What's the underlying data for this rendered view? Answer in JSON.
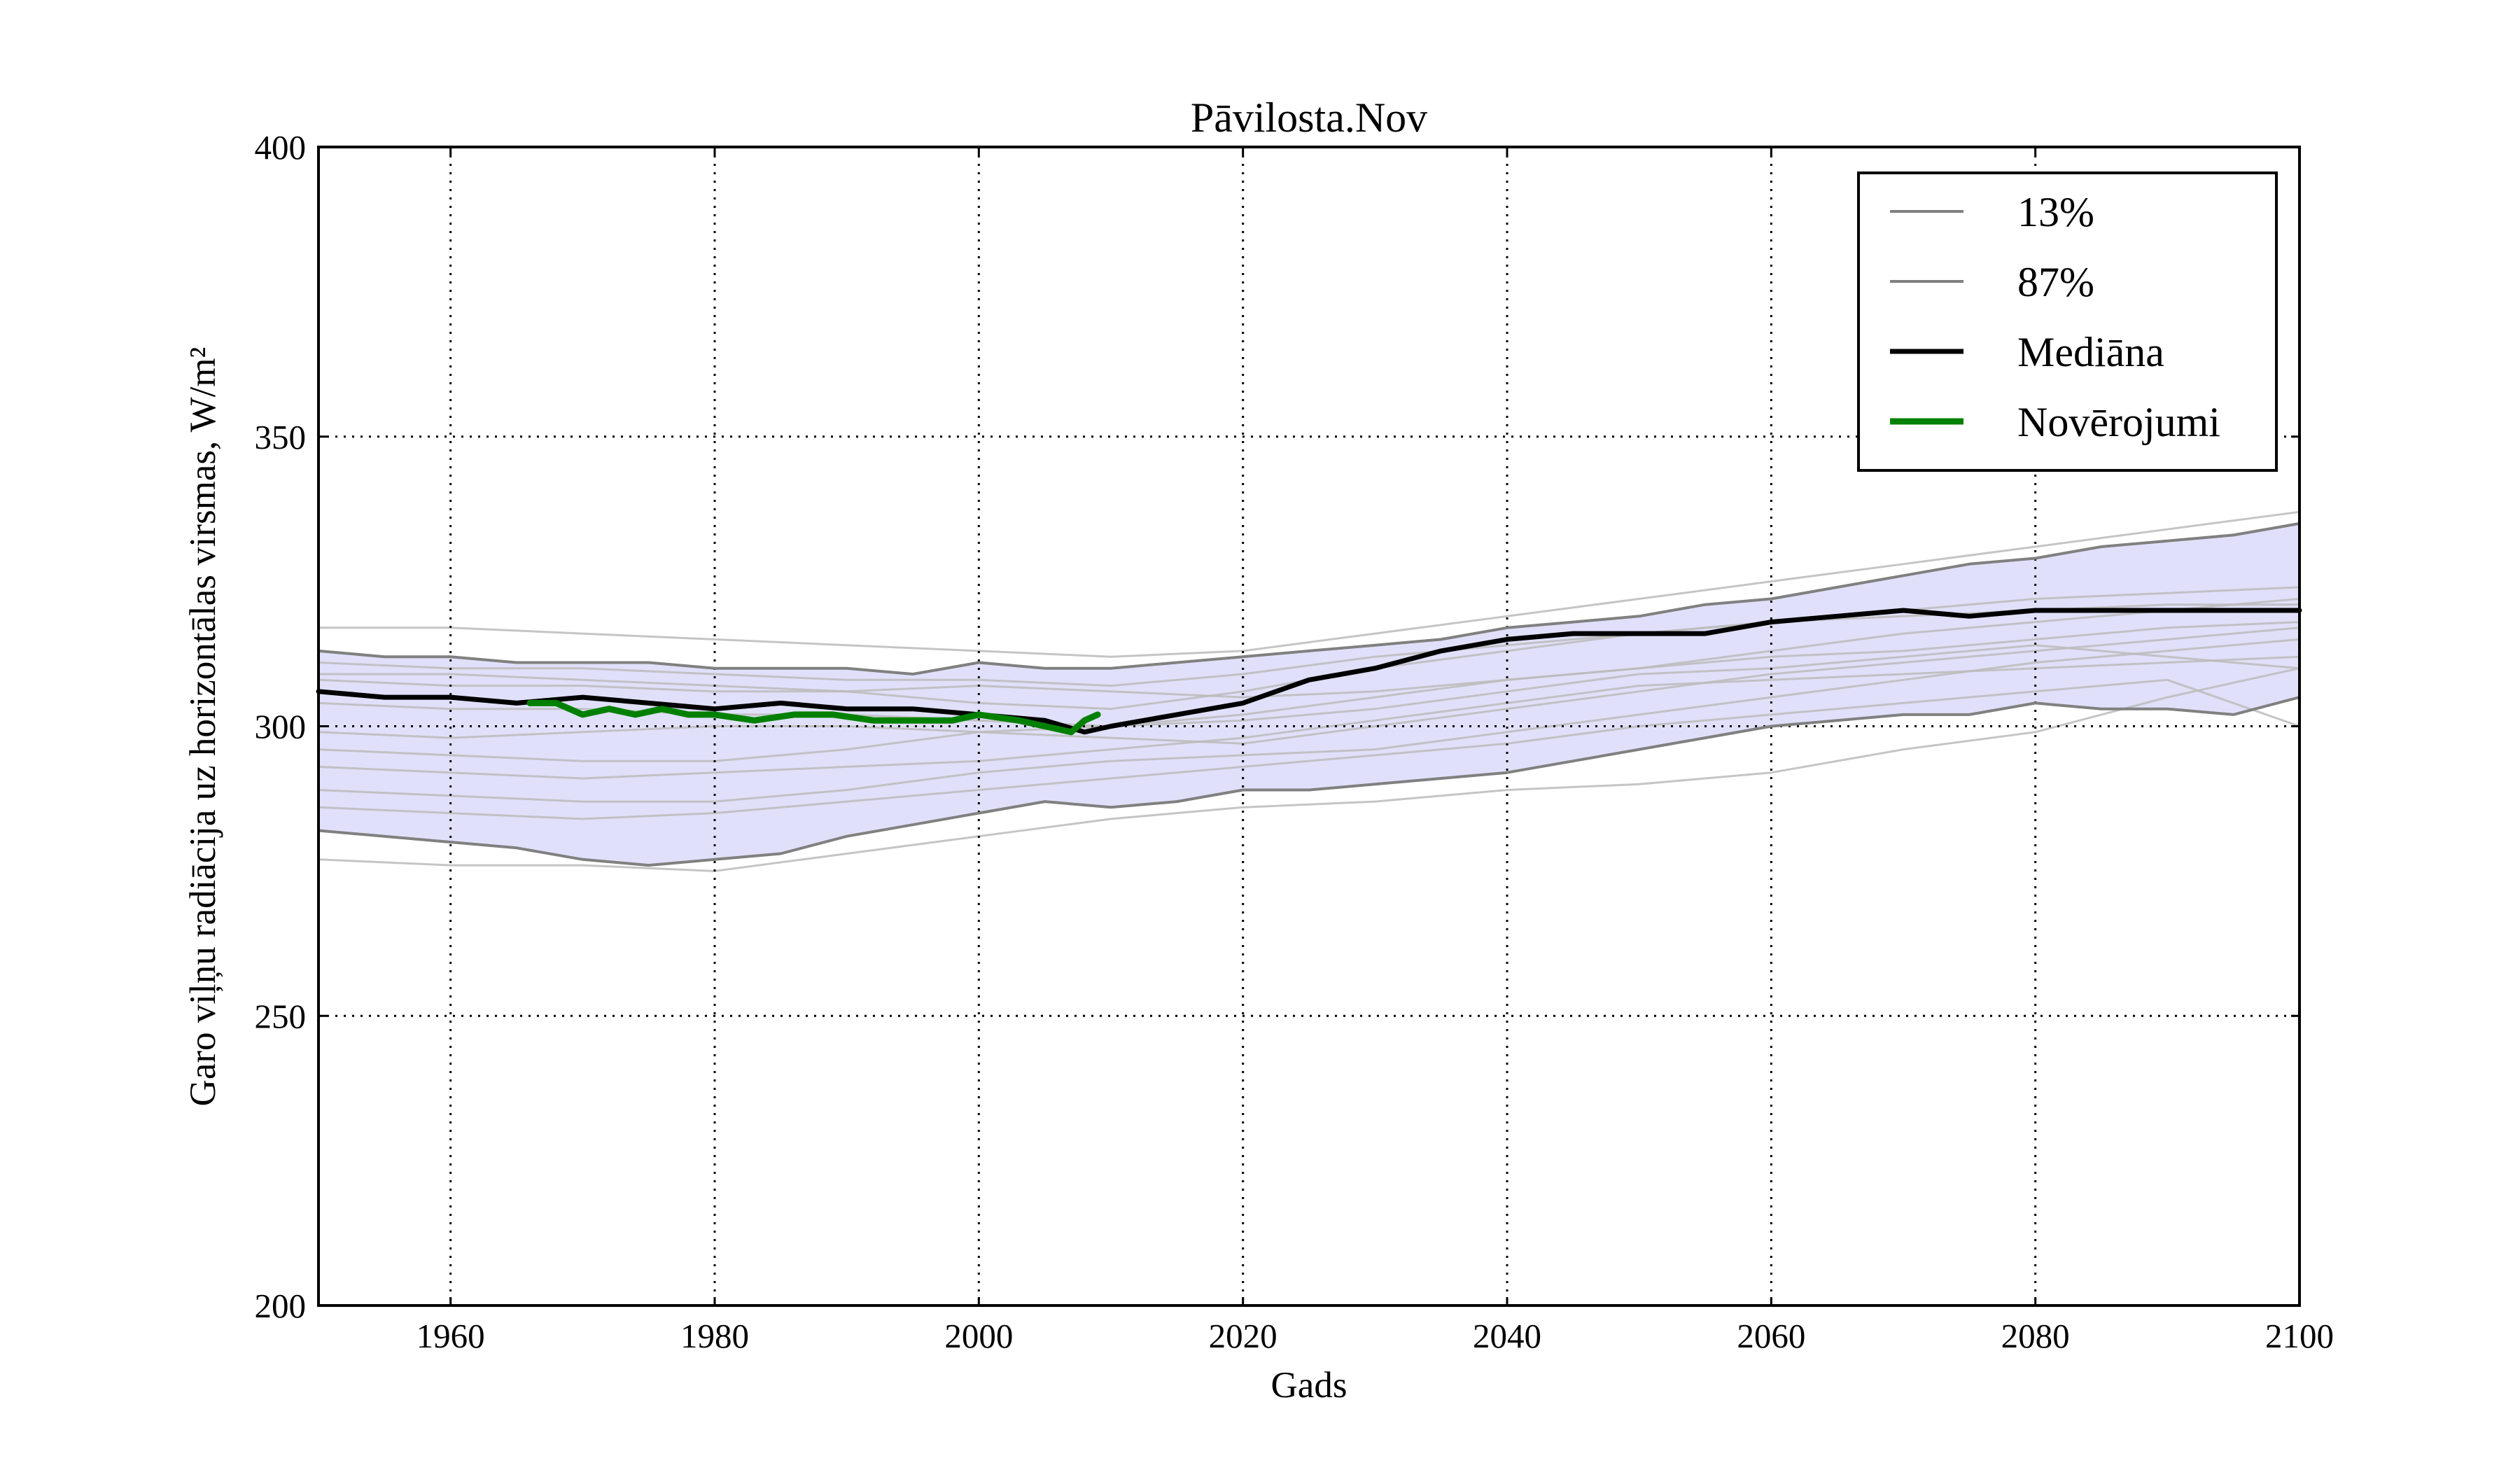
{
  "chart_data": {
    "type": "line",
    "title": "Pāvilosta.Nov",
    "xlabel": "Gads",
    "ylabel": "Garo viļņu radiācija uz horizontālas virsmas, W/m²",
    "xlim": [
      1950,
      2100
    ],
    "ylim": [
      200,
      400
    ],
    "xticks": [
      1960,
      1980,
      2000,
      2020,
      2040,
      2060,
      2080,
      2100
    ],
    "yticks": [
      200,
      250,
      300,
      350,
      400
    ],
    "grid": true,
    "legend_position": "top-right",
    "band": {
      "color": "#e0e0fa",
      "x": [
        1950,
        1955,
        1960,
        1965,
        1970,
        1975,
        1980,
        1985,
        1990,
        1995,
        2000,
        2005,
        2010,
        2015,
        2020,
        2025,
        2030,
        2035,
        2040,
        2045,
        2050,
        2055,
        2060,
        2065,
        2070,
        2075,
        2080,
        2085,
        2090,
        2095,
        2100
      ],
      "upper": [
        313,
        312,
        312,
        311,
        311,
        311,
        310,
        310,
        310,
        309,
        311,
        310,
        310,
        311,
        312,
        313,
        314,
        315,
        317,
        318,
        319,
        321,
        322,
        324,
        326,
        328,
        329,
        331,
        332,
        333,
        335
      ],
      "lower": [
        282,
        281,
        280,
        279,
        277,
        276,
        277,
        278,
        281,
        283,
        285,
        287,
        286,
        287,
        289,
        289,
        290,
        291,
        292,
        294,
        296,
        298,
        300,
        301,
        302,
        302,
        304,
        303,
        303,
        302,
        305
      ]
    },
    "series": [
      {
        "name": "13%",
        "color": "#808080",
        "width": 4,
        "x": [
          1950,
          1955,
          1960,
          1965,
          1970,
          1975,
          1980,
          1985,
          1990,
          1995,
          2000,
          2005,
          2010,
          2015,
          2020,
          2025,
          2030,
          2035,
          2040,
          2045,
          2050,
          2055,
          2060,
          2065,
          2070,
          2075,
          2080,
          2085,
          2090,
          2095,
          2100
        ],
        "values": [
          282,
          281,
          280,
          279,
          277,
          276,
          277,
          278,
          281,
          283,
          285,
          287,
          286,
          287,
          289,
          289,
          290,
          291,
          292,
          294,
          296,
          298,
          300,
          301,
          302,
          302,
          304,
          303,
          303,
          302,
          305
        ]
      },
      {
        "name": "87%",
        "color": "#808080",
        "width": 4,
        "x": [
          1950,
          1955,
          1960,
          1965,
          1970,
          1975,
          1980,
          1985,
          1990,
          1995,
          2000,
          2005,
          2010,
          2015,
          2020,
          2025,
          2030,
          2035,
          2040,
          2045,
          2050,
          2055,
          2060,
          2065,
          2070,
          2075,
          2080,
          2085,
          2090,
          2095,
          2100
        ],
        "values": [
          313,
          312,
          312,
          311,
          311,
          311,
          310,
          310,
          310,
          309,
          311,
          310,
          310,
          311,
          312,
          313,
          314,
          315,
          317,
          318,
          319,
          321,
          322,
          324,
          326,
          328,
          329,
          331,
          332,
          333,
          335
        ]
      },
      {
        "name": "Mediāna",
        "color": "#000000",
        "width": 7,
        "x": [
          1950,
          1955,
          1960,
          1965,
          1970,
          1975,
          1980,
          1985,
          1990,
          1995,
          2000,
          2005,
          2008,
          2010,
          2015,
          2020,
          2025,
          2030,
          2035,
          2040,
          2045,
          2050,
          2055,
          2060,
          2065,
          2070,
          2075,
          2080,
          2085,
          2090,
          2095,
          2100
        ],
        "values": [
          306,
          305,
          305,
          304,
          305,
          304,
          303,
          304,
          303,
          303,
          302,
          301,
          299,
          300,
          302,
          304,
          308,
          310,
          313,
          315,
          316,
          316,
          316,
          318,
          319,
          320,
          319,
          320,
          320,
          320,
          320,
          320
        ]
      },
      {
        "name": "Novērojumi",
        "color": "#008000",
        "width": 9,
        "x": [
          1966,
          1968,
          1970,
          1972,
          1974,
          1976,
          1978,
          1980,
          1983,
          1986,
          1989,
          1992,
          1995,
          1998,
          2000,
          2003,
          2005,
          2007,
          2008,
          2009
        ],
        "values": [
          304,
          304,
          302,
          303,
          302,
          303,
          302,
          302,
          301,
          302,
          302,
          301,
          301,
          301,
          302,
          301,
          300,
          299,
          301,
          302
        ]
      }
    ],
    "ensemble_members": {
      "color": "#bbbbbb",
      "x": [
        1950,
        1960,
        1970,
        1980,
        1990,
        2000,
        2010,
        2020,
        2030,
        2040,
        2050,
        2060,
        2070,
        2080,
        2090,
        2100
      ],
      "members": [
        [
          317,
          317,
          316,
          315,
          314,
          313,
          312,
          313,
          316,
          319,
          322,
          325,
          328,
          331,
          334,
          337
        ],
        [
          277,
          276,
          276,
          275,
          278,
          281,
          284,
          286,
          287,
          289,
          290,
          292,
          296,
          299,
          305,
          310
        ],
        [
          309,
          309,
          308,
          307,
          306,
          304,
          303,
          306,
          310,
          313,
          316,
          318,
          320,
          322,
          323,
          324
        ],
        [
          299,
          298,
          299,
          300,
          300,
          299,
          298,
          297,
          300,
          303,
          306,
          309,
          311,
          313,
          315,
          317
        ],
        [
          289,
          288,
          287,
          287,
          289,
          292,
          294,
          295,
          296,
          299,
          302,
          305,
          308,
          311,
          313,
          315
        ],
        [
          296,
          295,
          294,
          294,
          296,
          299,
          300,
          302,
          305,
          308,
          310,
          312,
          313,
          315,
          317,
          318
        ],
        [
          304,
          303,
          303,
          302,
          302,
          301,
          300,
          301,
          303,
          306,
          309,
          310,
          312,
          314,
          312,
          310
        ],
        [
          293,
          292,
          291,
          292,
          293,
          294,
          296,
          298,
          301,
          304,
          307,
          308,
          309,
          310,
          311,
          312
        ],
        [
          308,
          307,
          307,
          306,
          306,
          307,
          306,
          305,
          306,
          308,
          310,
          313,
          316,
          318,
          320,
          322
        ],
        [
          286,
          285,
          284,
          285,
          287,
          289,
          291,
          293,
          295,
          297,
          300,
          302,
          304,
          306,
          308,
          300
        ],
        [
          311,
          310,
          310,
          309,
          308,
          308,
          307,
          309,
          312,
          314,
          316,
          318,
          319,
          320,
          321,
          321
        ]
      ]
    }
  }
}
